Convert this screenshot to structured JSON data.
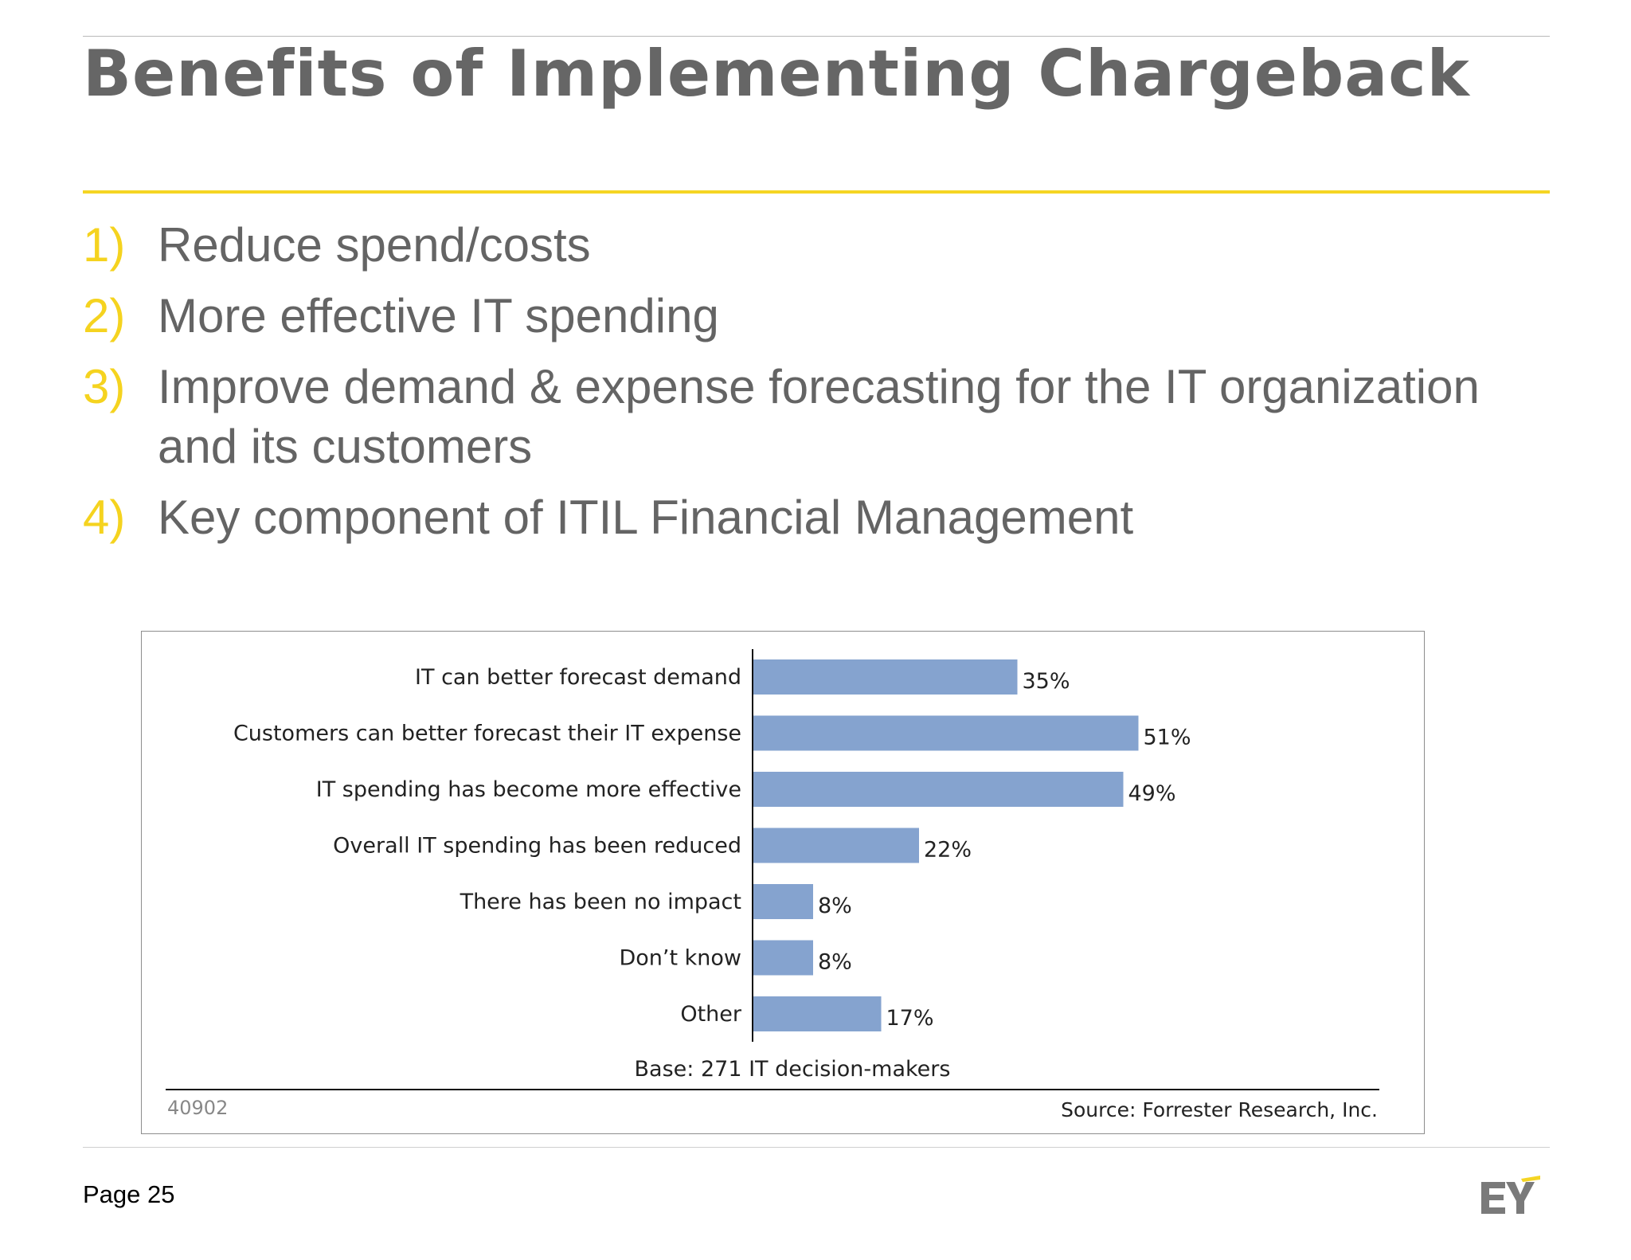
{
  "slide": {
    "title": "Benefits of Implementing Chargeback",
    "bullets": [
      {
        "num": "1)",
        "text": "Reduce spend/costs"
      },
      {
        "num": "2)",
        "text": "More effective IT spending"
      },
      {
        "num": "3)",
        "text": "Improve demand & expense forecasting for the IT organization and its customers"
      },
      {
        "num": "4)",
        "text": "Key component of ITIL Financial Management"
      }
    ],
    "page_label": "Page 25",
    "logo_text": "EY"
  },
  "colors": {
    "accent_yellow": "#f5d523",
    "bar_blue": "#85a3cf",
    "text_gray": "#646464"
  },
  "chart_data": {
    "type": "bar",
    "orientation": "horizontal",
    "categories": [
      "IT can better forecast demand",
      "Customers can better forecast their IT expense",
      "IT spending has become more effective",
      "Overall IT spending has been reduced",
      "There has been no impact",
      "Don’t know",
      "Other"
    ],
    "values": [
      35,
      51,
      49,
      22,
      8,
      8,
      17
    ],
    "value_labels": [
      "35%",
      "51%",
      "49%",
      "22%",
      "8%",
      "8%",
      "17%"
    ],
    "xlim": [
      0,
      100
    ],
    "base_note": "Base: 271 IT decision-makers",
    "id_label": "40902",
    "source": "Source: Forrester Research, Inc."
  }
}
